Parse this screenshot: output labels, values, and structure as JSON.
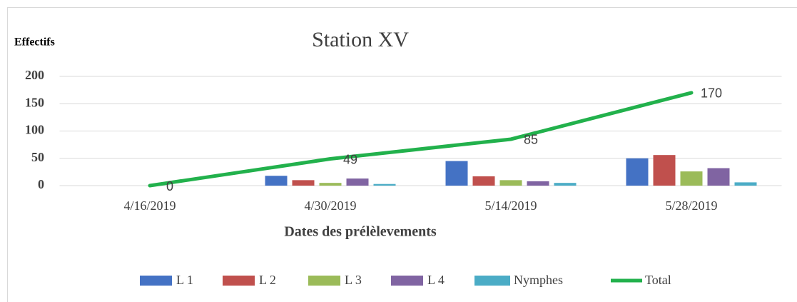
{
  "chart_data": {
    "type": "bar-line",
    "title": "Station XV",
    "y_label": "Effectifs",
    "x_label": "Dates des prélèlevements",
    "categories": [
      "4/16/2019",
      "4/30/2019",
      "5/14/2019",
      "5/28/2019"
    ],
    "series": [
      {
        "name": "L 1",
        "color": "#4472c4",
        "type": "bar",
        "values": [
          0,
          18,
          45,
          50
        ]
      },
      {
        "name": "L 2",
        "color": "#c0504d",
        "type": "bar",
        "values": [
          0,
          10,
          17,
          56
        ]
      },
      {
        "name": "L 3",
        "color": "#9bbb59",
        "type": "bar",
        "values": [
          0,
          5,
          10,
          26
        ]
      },
      {
        "name": "L 4",
        "color": "#8064a2",
        "type": "bar",
        "values": [
          0,
          13,
          8,
          32
        ]
      },
      {
        "name": "Nymphes",
        "color": "#4bacc6",
        "type": "bar",
        "values": [
          0,
          3,
          5,
          6
        ]
      },
      {
        "name": "Total",
        "color": "#22b14c",
        "type": "line",
        "values": [
          0,
          49,
          85,
          170
        ]
      }
    ],
    "ylim": [
      0,
      200
    ],
    "yticks": [
      0,
      50,
      100,
      150,
      200
    ],
    "grid": true,
    "legend": "bottom"
  }
}
